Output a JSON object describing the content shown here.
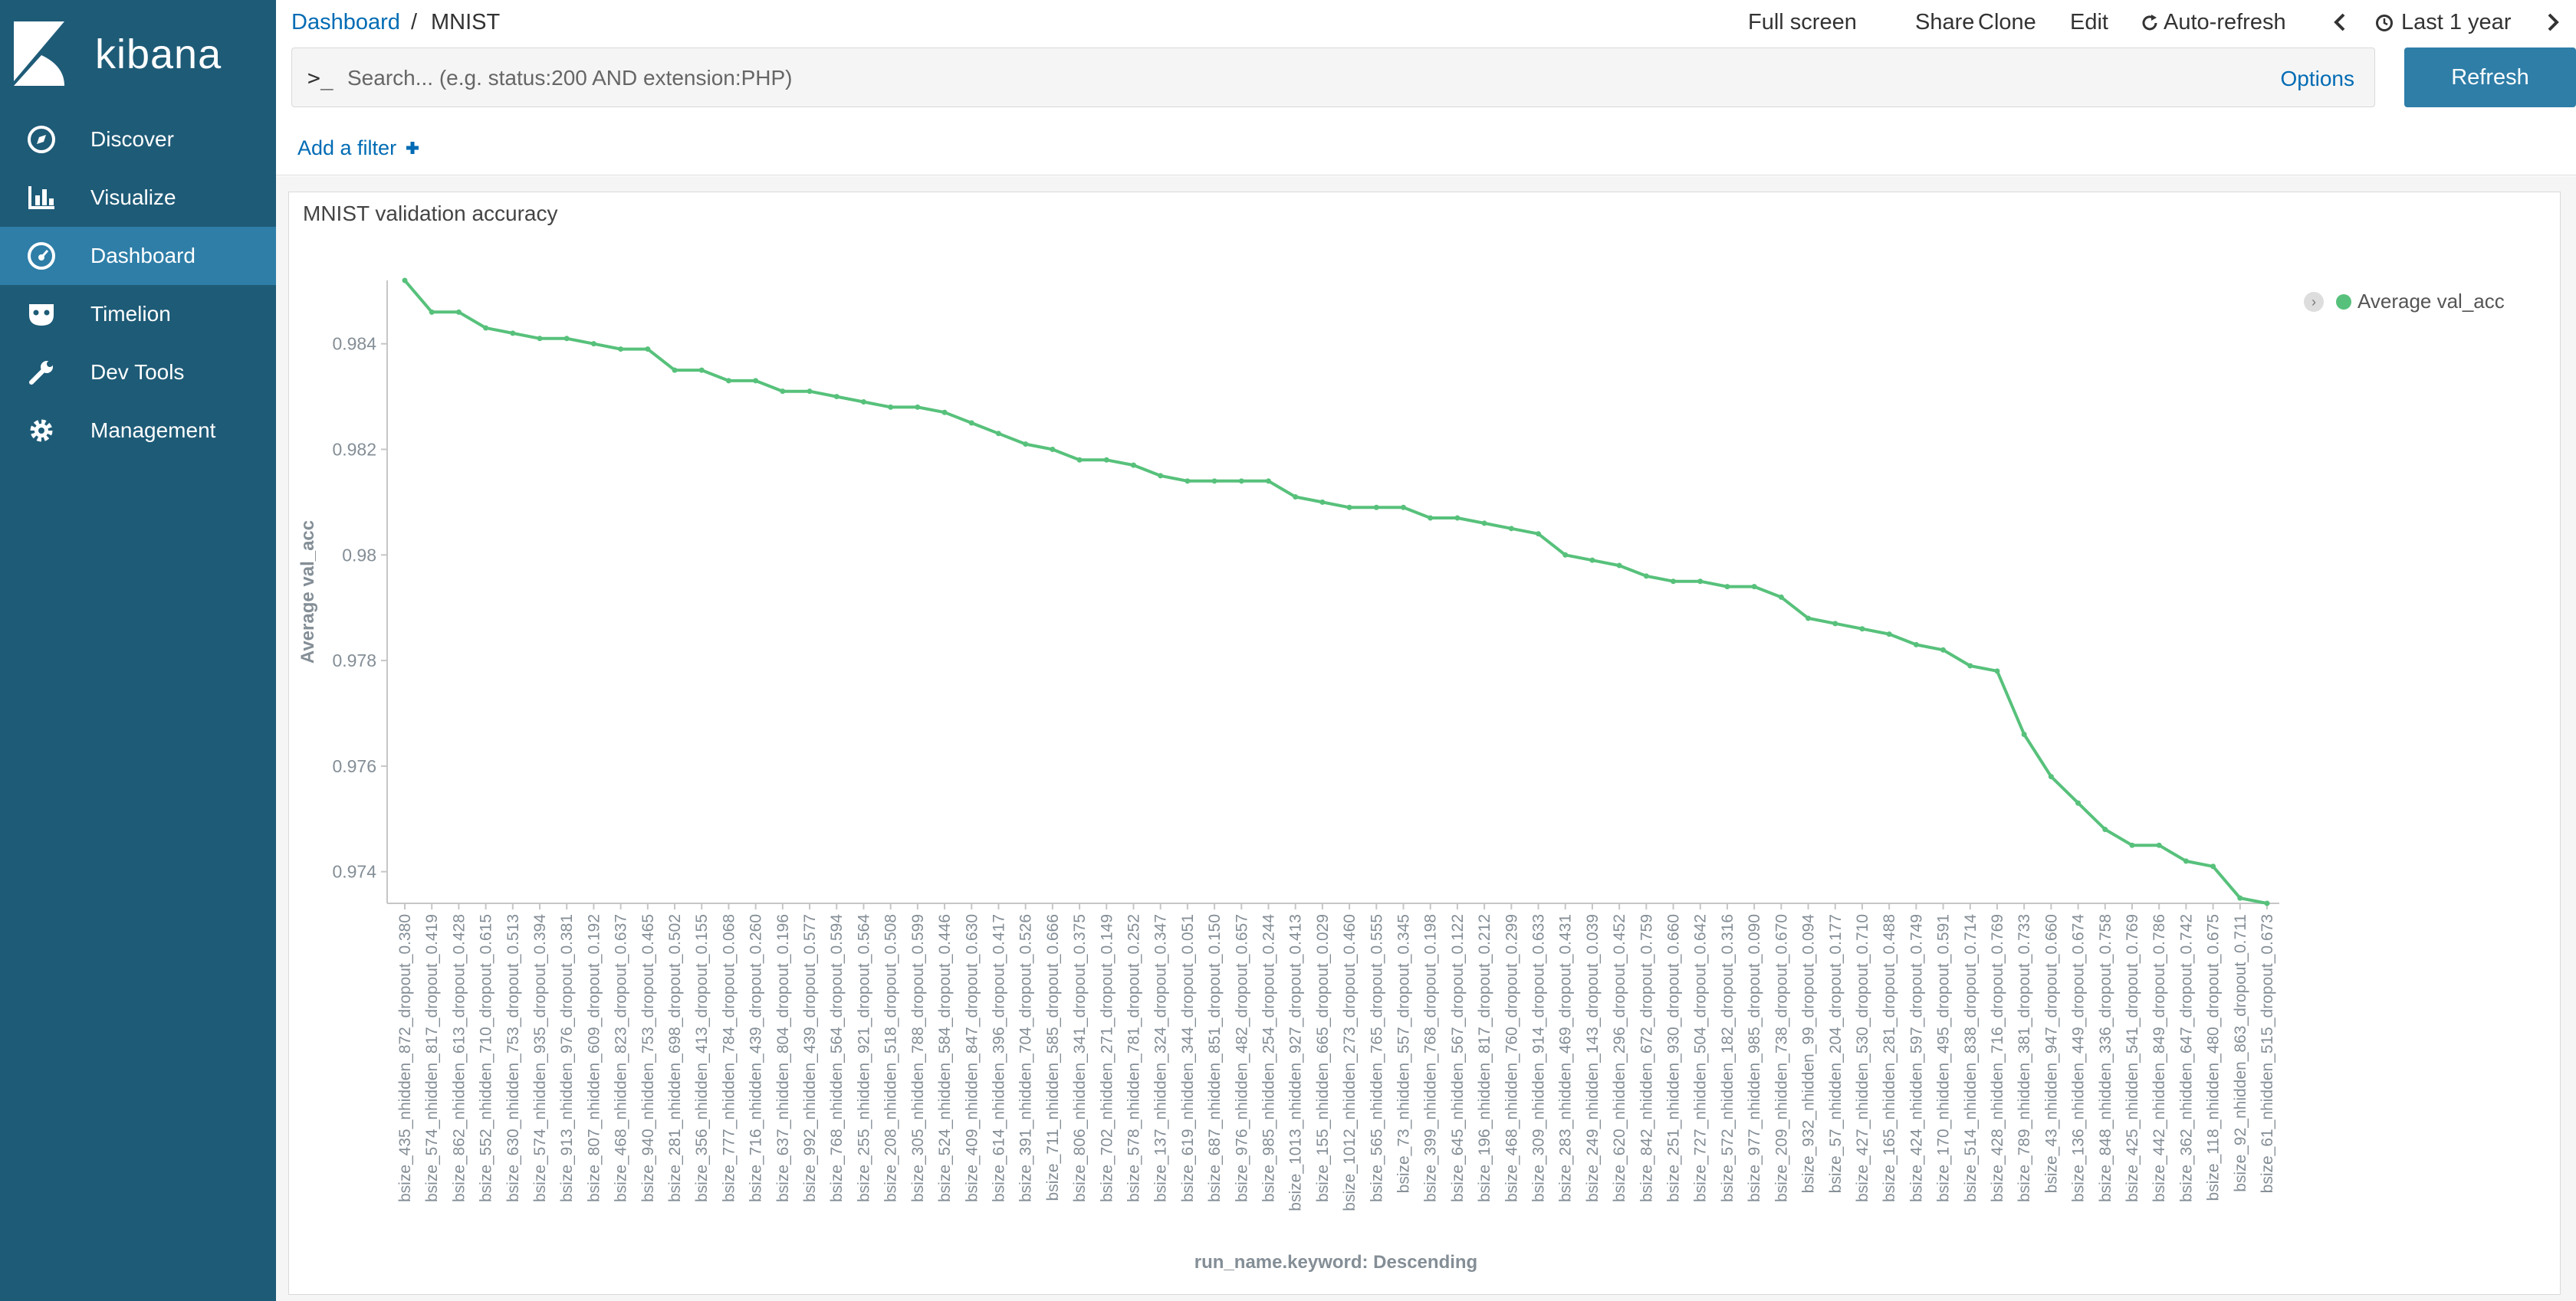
{
  "app": {
    "logo_text": "kibana"
  },
  "sidebar": {
    "items": [
      {
        "label": "Discover",
        "icon": "compass-icon"
      },
      {
        "label": "Visualize",
        "icon": "bar-chart-icon"
      },
      {
        "label": "Dashboard",
        "icon": "dashboard-gauge-icon",
        "active": true
      },
      {
        "label": "Timelion",
        "icon": "timelion-mask-icon"
      },
      {
        "label": "Dev Tools",
        "icon": "wrench-icon"
      },
      {
        "label": "Management",
        "icon": "gear-icon"
      }
    ]
  },
  "breadcrumb": {
    "parent": "Dashboard",
    "separator": "/",
    "current": "MNIST"
  },
  "toolbar": {
    "full_screen": "Full screen",
    "share": "Share",
    "clone": "Clone",
    "edit": "Edit",
    "auto_refresh": "Auto-refresh",
    "time_range": "Last 1 year"
  },
  "search": {
    "prompt": ">_",
    "placeholder": "Search... (e.g. status:200 AND extension:PHP)",
    "value": "",
    "options": "Options",
    "refresh": "Refresh"
  },
  "filters": {
    "add_filter": "Add a filter",
    "add_icon": "plus-icon"
  },
  "panel": {
    "title": "MNIST validation accuracy"
  },
  "colors": {
    "sidebar": "#1e5b77",
    "sidebar_active": "#2e7ea8",
    "link": "#006bb4",
    "series": "#57c17b"
  },
  "chart_data": {
    "type": "line",
    "title": "MNIST validation accuracy",
    "ylabel": "Average val_acc",
    "xlabel": "run_name.keyword: Descending",
    "ylim": [
      0.9734,
      0.9852
    ],
    "yticks": [
      "0.974",
      "0.976",
      "0.978",
      "0.98",
      "0.982",
      "0.984"
    ],
    "legend_position": "top-right",
    "grid": false,
    "categories": [
      "bsize_435_nhidden_872_dropout_0.380",
      "bsize_574_nhidden_817_dropout_0.419",
      "bsize_862_nhidden_613_dropout_0.428",
      "bsize_552_nhidden_710_dropout_0.615",
      "bsize_630_nhidden_753_dropout_0.513",
      "bsize_574_nhidden_935_dropout_0.394",
      "bsize_913_nhidden_976_dropout_0.381",
      "bsize_807_nhidden_609_dropout_0.192",
      "bsize_468_nhidden_823_dropout_0.637",
      "bsize_940_nhidden_753_dropout_0.465",
      "bsize_281_nhidden_698_dropout_0.502",
      "bsize_356_nhidden_413_dropout_0.155",
      "bsize_777_nhidden_784_dropout_0.068",
      "bsize_716_nhidden_439_dropout_0.260",
      "bsize_637_nhidden_804_dropout_0.196",
      "bsize_992_nhidden_439_dropout_0.577",
      "bsize_768_nhidden_564_dropout_0.594",
      "bsize_255_nhidden_921_dropout_0.564",
      "bsize_208_nhidden_518_dropout_0.508",
      "bsize_305_nhidden_788_dropout_0.599",
      "bsize_524_nhidden_584_dropout_0.446",
      "bsize_409_nhidden_847_dropout_0.630",
      "bsize_614_nhidden_396_dropout_0.417",
      "bsize_391_nhidden_704_dropout_0.526",
      "bsize_711_nhidden_585_dropout_0.666",
      "bsize_806_nhidden_341_dropout_0.375",
      "bsize_702_nhidden_271_dropout_0.149",
      "bsize_578_nhidden_781_dropout_0.252",
      "bsize_137_nhidden_324_dropout_0.347",
      "bsize_619_nhidden_344_dropout_0.051",
      "bsize_687_nhidden_851_dropout_0.150",
      "bsize_976_nhidden_482_dropout_0.657",
      "bsize_985_nhidden_254_dropout_0.244",
      "bsize_1013_nhidden_927_dropout_0.413",
      "bsize_155_nhidden_665_dropout_0.029",
      "bsize_1012_nhidden_273_dropout_0.460",
      "bsize_565_nhidden_765_dropout_0.555",
      "bsize_73_nhidden_557_dropout_0.345",
      "bsize_399_nhidden_768_dropout_0.198",
      "bsize_645_nhidden_567_dropout_0.122",
      "bsize_196_nhidden_817_dropout_0.212",
      "bsize_468_nhidden_760_dropout_0.299",
      "bsize_309_nhidden_914_dropout_0.633",
      "bsize_283_nhidden_469_dropout_0.431",
      "bsize_249_nhidden_143_dropout_0.039",
      "bsize_620_nhidden_296_dropout_0.452",
      "bsize_842_nhidden_672_dropout_0.759",
      "bsize_251_nhidden_930_dropout_0.660",
      "bsize_727_nhidden_504_dropout_0.642",
      "bsize_572_nhidden_182_dropout_0.316",
      "bsize_977_nhidden_985_dropout_0.090",
      "bsize_209_nhidden_738_dropout_0.670",
      "bsize_932_nhidden_99_dropout_0.094",
      "bsize_57_nhidden_204_dropout_0.177",
      "bsize_427_nhidden_530_dropout_0.710",
      "bsize_165_nhidden_281_dropout_0.488",
      "bsize_424_nhidden_597_dropout_0.749",
      "bsize_170_nhidden_495_dropout_0.591",
      "bsize_514_nhidden_838_dropout_0.714",
      "bsize_428_nhidden_716_dropout_0.769",
      "bsize_789_nhidden_381_dropout_0.733",
      "bsize_43_nhidden_947_dropout_0.660",
      "bsize_136_nhidden_449_dropout_0.674",
      "bsize_848_nhidden_336_dropout_0.758",
      "bsize_425_nhidden_541_dropout_0.769",
      "bsize_442_nhidden_849_dropout_0.786",
      "bsize_362_nhidden_647_dropout_0.742",
      "bsize_118_nhidden_480_dropout_0.675",
      "bsize_92_nhidden_863_dropout_0.711",
      "bsize_61_nhidden_515_dropout_0.673"
    ],
    "series": [
      {
        "name": "Average val_acc",
        "values": [
          0.9852,
          0.9846,
          0.9846,
          0.9843,
          0.9842,
          0.9841,
          0.9841,
          0.984,
          0.9839,
          0.9839,
          0.9835,
          0.9835,
          0.9833,
          0.9833,
          0.9831,
          0.9831,
          0.983,
          0.9829,
          0.9828,
          0.9828,
          0.9827,
          0.9825,
          0.9823,
          0.9821,
          0.982,
          0.9818,
          0.9818,
          0.9817,
          0.9815,
          0.9814,
          0.9814,
          0.9814,
          0.9814,
          0.9811,
          0.981,
          0.9809,
          0.9809,
          0.9809,
          0.9807,
          0.9807,
          0.9806,
          0.9805,
          0.9804,
          0.98,
          0.9799,
          0.9798,
          0.9796,
          0.9795,
          0.9795,
          0.9794,
          0.9794,
          0.9792,
          0.9788,
          0.9787,
          0.9786,
          0.9785,
          0.9783,
          0.9782,
          0.9779,
          0.9778,
          0.9766,
          0.9758,
          0.9753,
          0.9748,
          0.9745,
          0.9745,
          0.9742,
          0.9741,
          0.9735,
          0.9734
        ]
      }
    ]
  }
}
